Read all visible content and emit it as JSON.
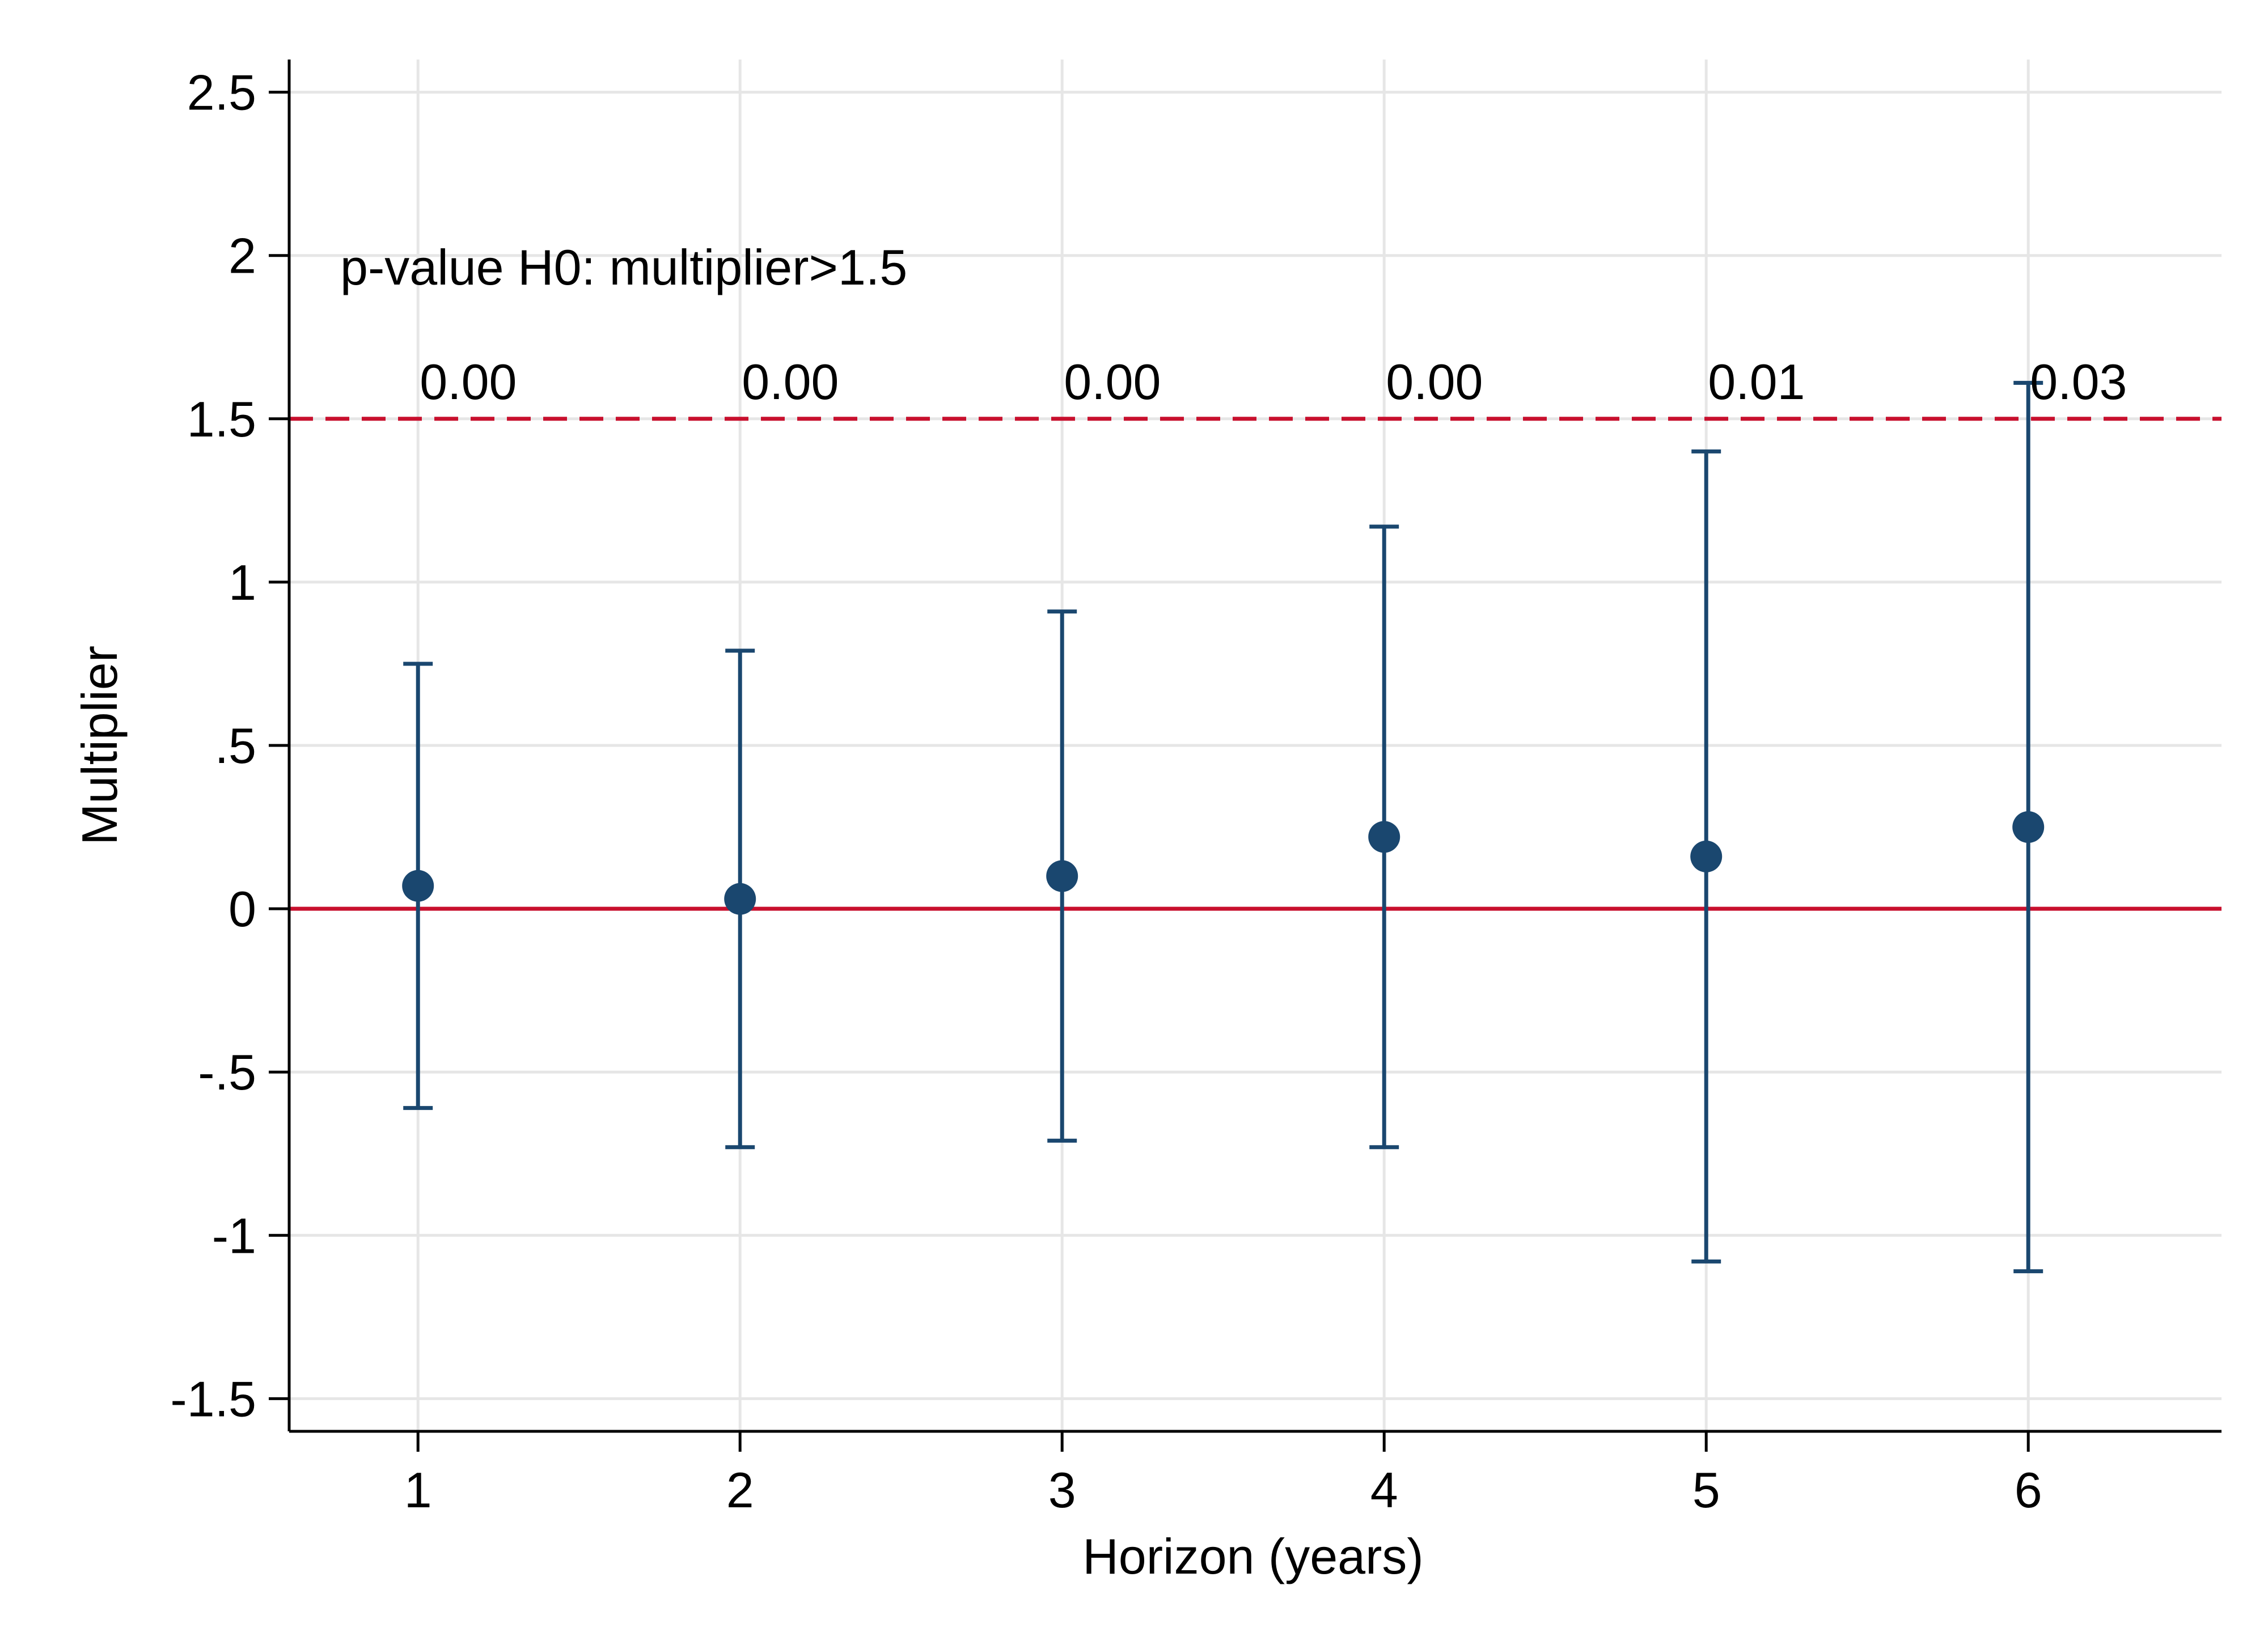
{
  "chart_data": {
    "type": "scatter",
    "xlabel": "Horizon (years)",
    "ylabel": "Multiplier",
    "xlim": [
      0.6,
      6.6
    ],
    "ylim": [
      -1.6,
      2.6
    ],
    "x_ticks": [
      1,
      2,
      3,
      4,
      5,
      6
    ],
    "x_tick_labels": [
      "1",
      "2",
      "3",
      "4",
      "5",
      "6"
    ],
    "y_ticks": [
      -1.5,
      -1,
      -0.5,
      0,
      0.5,
      1,
      1.5,
      2,
      2.5
    ],
    "y_tick_labels": [
      "-1.5",
      "-1",
      "-.5",
      "0",
      ".5",
      "1",
      "1.5",
      "2",
      "2.5"
    ],
    "grid": true,
    "points": [
      {
        "x": 1,
        "y": 0.07,
        "lower": -0.61,
        "upper": 0.75
      },
      {
        "x": 2,
        "y": 0.03,
        "lower": -0.73,
        "upper": 0.79
      },
      {
        "x": 3,
        "y": 0.1,
        "lower": -0.71,
        "upper": 0.91
      },
      {
        "x": 4,
        "y": 0.22,
        "lower": -0.73,
        "upper": 1.17
      },
      {
        "x": 5,
        "y": 0.16,
        "lower": -1.08,
        "upper": 1.4
      },
      {
        "x": 6,
        "y": 0.25,
        "lower": -1.11,
        "upper": 1.61
      }
    ],
    "reference_lines": [
      {
        "y": 0,
        "style": "solid",
        "color": "#c8102e"
      },
      {
        "y": 1.5,
        "style": "dashed",
        "color": "#c8102e"
      }
    ],
    "annotation_header": "p-value H0: multiplier>1.5",
    "p_values": [
      "0.00",
      "0.00",
      "0.00",
      "0.00",
      "0.01",
      "0.03"
    ],
    "colors": {
      "marker": "#1a476f",
      "reference": "#c8102e",
      "grid": "#e6e6e6",
      "axis": "#000000"
    }
  }
}
